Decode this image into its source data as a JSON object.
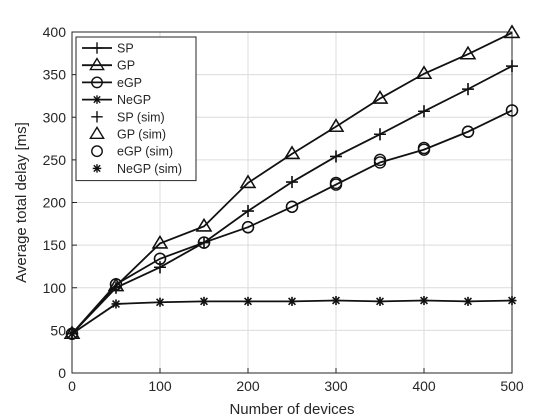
{
  "chart_data": {
    "type": "line",
    "title": "",
    "xlabel": "Number of devices",
    "ylabel": "Average total delay [ms]",
    "xlim": [
      0,
      500
    ],
    "ylim": [
      0,
      400
    ],
    "x_ticks": [
      0,
      100,
      200,
      300,
      400,
      500
    ],
    "y_ticks": [
      0,
      50,
      100,
      150,
      200,
      250,
      300,
      350,
      400
    ],
    "grid": true,
    "legend_position": "top-left",
    "x": [
      0,
      50,
      100,
      150,
      200,
      250,
      300,
      350,
      400,
      450,
      500
    ],
    "series": [
      {
        "name": "SP",
        "marker": "plus",
        "line": true,
        "values": [
          46,
          100,
          124,
          153,
          190,
          224,
          254,
          280,
          307,
          333,
          360
        ]
      },
      {
        "name": "GP",
        "marker": "triangle",
        "line": true,
        "values": [
          46,
          102,
          152,
          172,
          223,
          257,
          289,
          322,
          351,
          374,
          399
        ]
      },
      {
        "name": "eGP",
        "marker": "circle",
        "line": true,
        "values": [
          46,
          104,
          134,
          153,
          171,
          195,
          221,
          247,
          262,
          283,
          308
        ]
      },
      {
        "name": "NeGP",
        "marker": "asterisk",
        "line": true,
        "values": [
          46,
          81,
          83,
          84,
          84,
          84,
          85,
          84,
          85,
          84,
          85
        ]
      },
      {
        "name": "SP (sim)",
        "marker": "plus",
        "line": false,
        "values": [
          46,
          100,
          124,
          153,
          190,
          224,
          254,
          280,
          307,
          333,
          360
        ]
      },
      {
        "name": "GP (sim)",
        "marker": "triangle",
        "line": false,
        "values": [
          46,
          102,
          152,
          172,
          223,
          257,
          289,
          322,
          351,
          374,
          399
        ]
      },
      {
        "name": "eGP (sim)",
        "marker": "circle",
        "line": false,
        "values": [
          46,
          104,
          134,
          153,
          171,
          195,
          223,
          250,
          264,
          283,
          308
        ]
      },
      {
        "name": "NeGP (sim)",
        "marker": "asterisk",
        "line": false,
        "values": [
          46,
          81,
          83,
          84,
          84,
          84,
          85,
          84,
          85,
          84,
          85
        ]
      }
    ]
  }
}
